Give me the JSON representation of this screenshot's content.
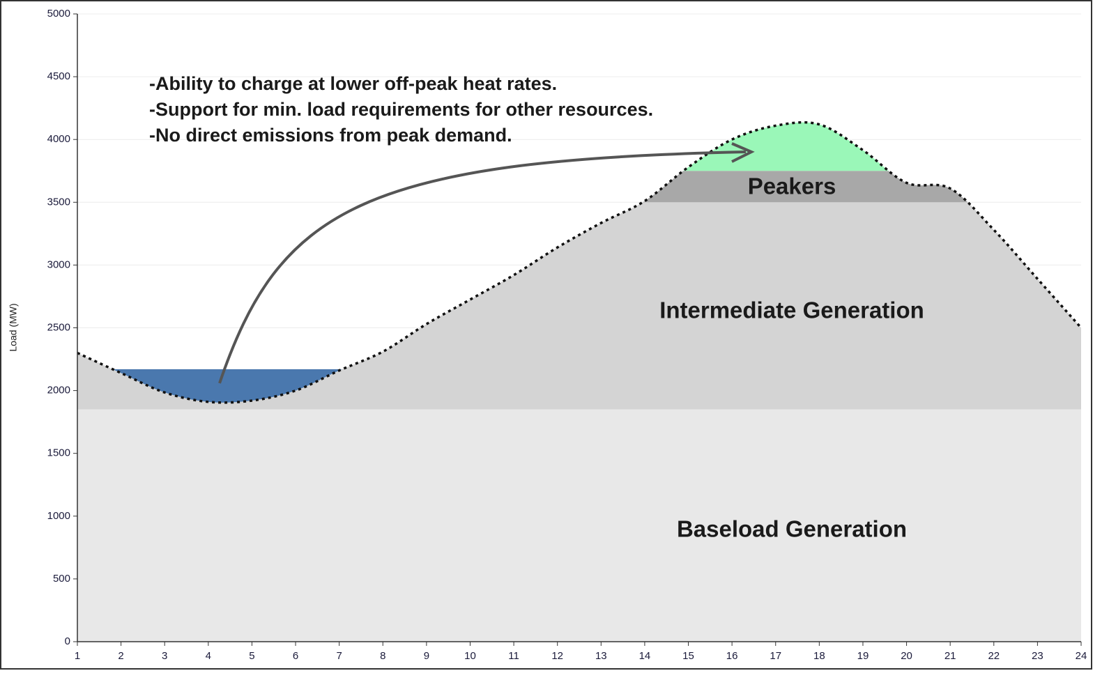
{
  "chart_data": {
    "type": "area",
    "ylabel": "Load (MW)",
    "x": [
      1,
      2,
      3,
      4,
      5,
      6,
      7,
      8,
      9,
      10,
      11,
      12,
      13,
      14,
      15,
      16,
      17,
      18,
      19,
      20,
      21,
      22,
      23,
      24
    ],
    "values": [
      2300,
      2140,
      1985,
      1910,
      1920,
      2000,
      2160,
      2310,
      2530,
      2725,
      2920,
      3140,
      3335,
      3510,
      3780,
      4000,
      4110,
      4120,
      3915,
      3655,
      3610,
      3280,
      2890,
      2500
    ],
    "line_color": "#111111",
    "xlim": [
      1,
      24
    ],
    "xticks": [
      1,
      2,
      3,
      4,
      5,
      6,
      7,
      8,
      9,
      10,
      11,
      12,
      13,
      14,
      15,
      16,
      17,
      18,
      19,
      20,
      21,
      22,
      23,
      24
    ],
    "ylim": [
      0,
      5000
    ],
    "yticks": [
      0,
      500,
      1000,
      1500,
      2000,
      2500,
      3000,
      3500,
      4000,
      4500,
      5000
    ],
    "grid": true,
    "bands": [
      {
        "label": "Baseload Generation",
        "top": 1850,
        "color": "#e8e8e8"
      },
      {
        "label": "Intermediate Generation",
        "top": 3500,
        "color": "#d4d4d4"
      },
      {
        "label": "Peakers",
        "top": 3750,
        "color": "#a8a8a8"
      }
    ],
    "storage": {
      "charge_level": 2170,
      "charge_color": "#4a78ae",
      "discharge_color": "#9af7b8"
    },
    "annotations": [
      "-Ability to charge at lower off-peak heat rates.",
      "-Support for min. load requirements for other resources.",
      "-No direct emissions from peak demand."
    ]
  }
}
